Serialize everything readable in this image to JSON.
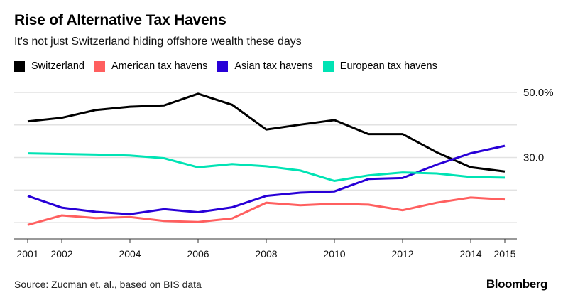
{
  "chart_data": {
    "type": "line",
    "title": "Rise of Alternative Tax Havens",
    "subtitle": "It's not just Switzerland hiding offshore wealth these days",
    "x": [
      2001,
      2002,
      2003,
      2004,
      2005,
      2006,
      2007,
      2008,
      2009,
      2010,
      2011,
      2012,
      2013,
      2014,
      2015
    ],
    "x_tick_labels": [
      "2001",
      "2002",
      "2004",
      "2006",
      "2008",
      "2010",
      "2012",
      "2014",
      "2015"
    ],
    "x_ticks": [
      2001,
      2002,
      2004,
      2006,
      2008,
      2010,
      2012,
      2014,
      2015
    ],
    "y_ticks": [
      10,
      20,
      30,
      40,
      50
    ],
    "y_tick_labels": [
      {
        "value": 50,
        "label": "50.0%"
      },
      {
        "value": 30,
        "label": "30.0"
      }
    ],
    "ylim": [
      5,
      50
    ],
    "xlim": [
      2001,
      2015
    ],
    "y_axis_side": "right",
    "grid": true,
    "legend_position": "top-left",
    "xlabel": "",
    "ylabel": "",
    "series": [
      {
        "name": "Switzerland",
        "color": "#000000",
        "values": [
          41.1,
          42.2,
          44.6,
          45.6,
          46.0,
          49.6,
          46.2,
          38.6,
          40.1,
          41.5,
          37.2,
          37.2,
          31.6,
          27.0,
          25.7
        ]
      },
      {
        "name": "American tax havens",
        "color": "#ff5f5f",
        "values": [
          9.3,
          12.2,
          11.4,
          11.7,
          10.5,
          10.2,
          11.3,
          16.1,
          15.3,
          15.8,
          15.5,
          13.8,
          16.1,
          17.7,
          17.1
        ]
      },
      {
        "name": "Asian tax havens",
        "color": "#2800d7",
        "values": [
          18.2,
          14.6,
          13.3,
          12.6,
          14.1,
          13.2,
          14.7,
          18.2,
          19.2,
          19.6,
          23.4,
          23.7,
          27.8,
          31.3,
          33.6
        ]
      },
      {
        "name": "European tax havens",
        "color": "#00e3b4",
        "values": [
          31.3,
          31.1,
          30.9,
          30.6,
          29.8,
          27.0,
          28.0,
          27.3,
          26.0,
          22.8,
          24.5,
          25.4,
          25.1,
          24.0,
          23.8
        ]
      }
    ]
  },
  "footer": {
    "source": "Source: Zucman et. al., based on BIS data",
    "brand": "Bloomberg"
  },
  "colors": {
    "grid": "#e2e2e2",
    "axis": "#333333"
  }
}
